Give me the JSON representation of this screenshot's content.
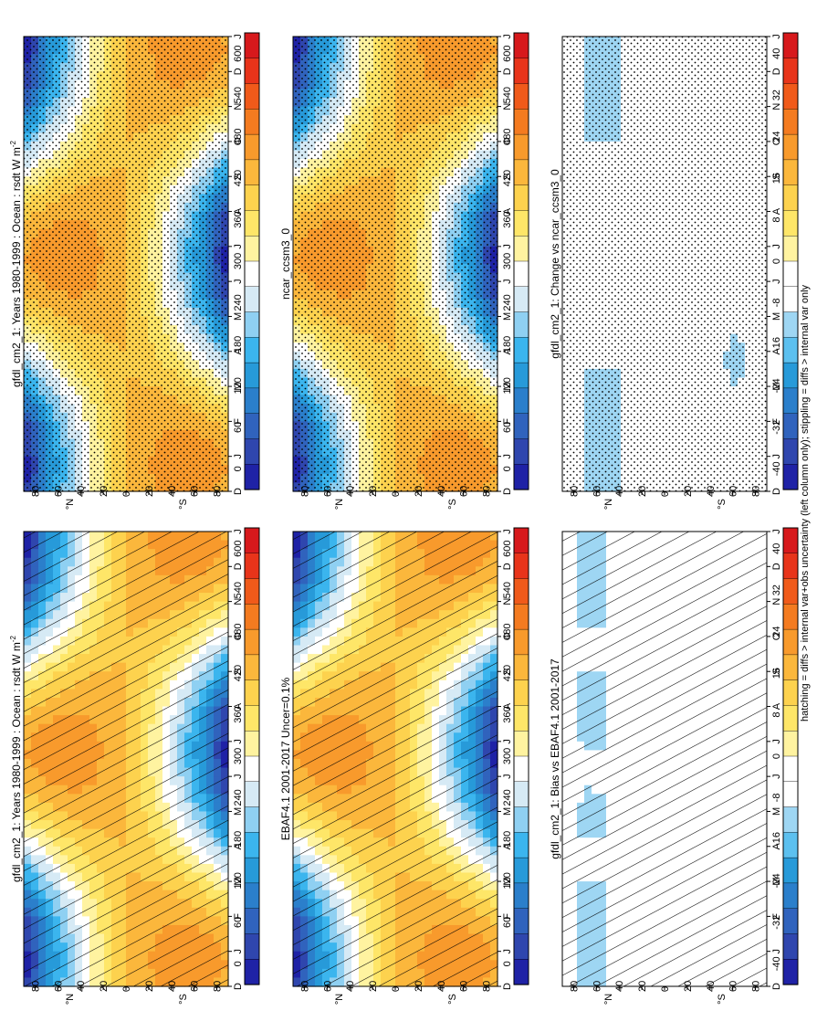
{
  "caption": "hatching = diffs > internal var+obs uncertainty (left column only); stippling = diffs > internal var only",
  "lat_ticks": [
    "80",
    "60",
    "40",
    "20",
    "0",
    "20",
    "40",
    "60",
    "80"
  ],
  "lat_units": [
    "°N",
    "°S"
  ],
  "months": [
    "D",
    "J",
    "F",
    "M",
    "A",
    "M",
    "J",
    "J",
    "A",
    "S",
    "O",
    "N",
    "D",
    "J"
  ],
  "colorbar_abs": {
    "labels": [
      "600",
      "540",
      "480",
      "420",
      "360",
      "300",
      "240",
      "180",
      "120",
      "60",
      "0"
    ],
    "colors": [
      "#d7191c",
      "#e8341a",
      "#f05a1a",
      "#f47b20",
      "#f89a2c",
      "#fbb73c",
      "#fdd24e",
      "#fee668",
      "#fff3a0",
      "#ffffff",
      "#d6eaf5",
      "#8fd0f2",
      "#3bb5ee",
      "#279ad9",
      "#2b7fcb",
      "#3063bd",
      "#2f46ae",
      "#1f22a6"
    ]
  },
  "colorbar_diff": {
    "labels": [
      "40",
      "32",
      "24",
      "16",
      "8",
      "0",
      "-8",
      "-16",
      "-24",
      "-32",
      "-40"
    ],
    "colors": [
      "#d7191c",
      "#e8341a",
      "#f05a1a",
      "#f47b20",
      "#f89a2c",
      "#fbb73c",
      "#fdd24e",
      "#fee668",
      "#fff3a0",
      "#ffffff",
      "#ffffff",
      "#9ed6f3",
      "#5cc0ef",
      "#279ad9",
      "#2b7fcb",
      "#3063bd",
      "#2f46ae",
      "#1f22a6"
    ]
  },
  "chart_data": [
    {
      "type": "heatmap",
      "title": "gfdl_cm2_1: Years 1980-1999 : Ocean : rsdt W m",
      "title_sup": "-2",
      "field": "absolute",
      "x": [
        "D",
        "J",
        "F",
        "M",
        "A",
        "M",
        "J",
        "J",
        "A",
        "S",
        "O",
        "N",
        "D",
        "J"
      ],
      "y": [
        "80°N",
        "60°N",
        "40°N",
        "20°N",
        "0",
        "20°S",
        "40°S",
        "60°S",
        "80°S"
      ],
      "zlim": [
        0,
        600
      ],
      "overlay": "hatching"
    },
    {
      "type": "heatmap",
      "title": "gfdl_cm2_1: Years 1980-1999 : Ocean : rsdt W m",
      "title_sup": "-2",
      "field": "absolute",
      "x": [
        "D",
        "J",
        "F",
        "M",
        "A",
        "M",
        "J",
        "J",
        "A",
        "S",
        "O",
        "N",
        "D",
        "J"
      ],
      "y": [
        "80°N",
        "60°N",
        "40°N",
        "20°N",
        "0",
        "20°S",
        "40°S",
        "60°S",
        "80°S"
      ],
      "zlim": [
        0,
        600
      ],
      "overlay": "stippling"
    },
    {
      "type": "heatmap",
      "title": "EBAF4.1 2001-2017 Uncer=0.1%",
      "title_sup": "",
      "field": "absolute",
      "x": [
        "D",
        "J",
        "F",
        "M",
        "A",
        "M",
        "J",
        "J",
        "A",
        "S",
        "O",
        "N",
        "D",
        "J"
      ],
      "y": [
        "80°N",
        "60°N",
        "40°N",
        "20°N",
        "0",
        "20°S",
        "40°S",
        "60°S",
        "80°S"
      ],
      "zlim": [
        0,
        600
      ],
      "overlay": "hatching"
    },
    {
      "type": "heatmap",
      "title": "ncar_ccsm3_0",
      "title_sup": "",
      "field": "absolute",
      "x": [
        "D",
        "J",
        "F",
        "M",
        "A",
        "M",
        "J",
        "J",
        "A",
        "S",
        "O",
        "N",
        "D",
        "J"
      ],
      "y": [
        "80°N",
        "60°N",
        "40°N",
        "20°N",
        "0",
        "20°S",
        "40°S",
        "60°S",
        "80°S"
      ],
      "zlim": [
        0,
        600
      ],
      "overlay": "stippling"
    },
    {
      "type": "heatmap",
      "title": "gfdl_cm2_1: Bias vs EBAF4.1 2001-2017",
      "title_sup": "",
      "field": "bias",
      "x": [
        "D",
        "J",
        "F",
        "M",
        "A",
        "M",
        "J",
        "J",
        "A",
        "S",
        "O",
        "N",
        "D",
        "J"
      ],
      "y": [
        "80°N",
        "60°N",
        "40°N",
        "20°N",
        "0",
        "20°S",
        "40°S",
        "60°S",
        "80°S"
      ],
      "zlim": [
        -40,
        40
      ],
      "overlay": "hatching"
    },
    {
      "type": "heatmap",
      "title": "gfdl_cm2_1: Change vs ncar_ccsm3_0",
      "title_sup": "",
      "field": "change",
      "x": [
        "D",
        "J",
        "F",
        "M",
        "A",
        "M",
        "J",
        "J",
        "A",
        "S",
        "O",
        "N",
        "D",
        "J"
      ],
      "y": [
        "80°N",
        "60°N",
        "40°N",
        "20°N",
        "0",
        "20°S",
        "40°S",
        "60°S",
        "80°S"
      ],
      "zlim": [
        -40,
        40
      ],
      "overlay": "stippling"
    }
  ]
}
